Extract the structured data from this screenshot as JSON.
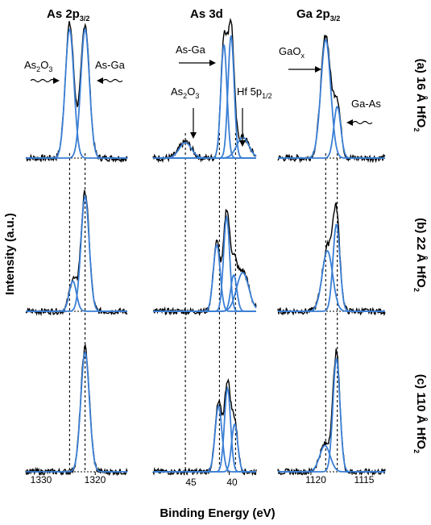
{
  "ylabel": "Intensity (a.u.)",
  "xlabel": "Binding Energy (eV)",
  "colors": {
    "data": "#000000",
    "fit": "#3a7fd5"
  },
  "columns": [
    {
      "id": "as2p",
      "title_main": "As 2p",
      "title_sub": "3/2",
      "xlim": [
        1333,
        1314
      ],
      "ticks": [
        {
          "value": 1330,
          "label": "1330"
        },
        {
          "value": 1320,
          "label": "1320"
        }
      ],
      "markers": [
        1324.8,
        1321.9
      ]
    },
    {
      "id": "as3d",
      "title_main": "As 3d",
      "title_sub": "",
      "xlim": [
        48.5,
        37
      ],
      "ticks": [
        {
          "value": 45,
          "label": "45"
        },
        {
          "value": 40,
          "label": "40"
        }
      ],
      "markers": [
        44.9,
        41.1,
        39.3
      ]
    },
    {
      "id": "ga2p",
      "title_main": "Ga 2p",
      "title_sub": "3/2",
      "xlim": [
        1124,
        1111
      ],
      "ticks": [
        {
          "value": 1120,
          "label": "1120"
        },
        {
          "value": 1115,
          "label": "1115"
        }
      ],
      "markers": [
        1118.2,
        1116.8
      ]
    }
  ],
  "rows": [
    {
      "label_prefix": "(a) 16 Å HfO",
      "label_sub": "2"
    },
    {
      "label_prefix": "(b) 22 Å HfO",
      "label_sub": "2"
    },
    {
      "label_prefix": "(c) 110 Å HfO",
      "label_sub": "2"
    }
  ],
  "annotations": {
    "as2p": [
      {
        "text": "As",
        "sub": "2",
        "text2": "O",
        "sub2": "3"
      },
      {
        "text": "As-Ga"
      }
    ],
    "as3d": [
      {
        "text": "As-Ga"
      },
      {
        "text": "As",
        "sub": "2",
        "text2": "O",
        "sub2": "3"
      },
      {
        "text": "Hf 5p",
        "sub": "1/2"
      }
    ],
    "ga2p": [
      {
        "text": "GaO",
        "sub": "x"
      },
      {
        "text": "Ga-As"
      }
    ]
  },
  "chart_data": {
    "type": "line",
    "title": "",
    "xlabel": "Binding Energy (eV)",
    "ylabel": "Intensity (a.u.)",
    "grid": false,
    "panels": [
      {
        "row": "a",
        "column": "as2p",
        "components": [
          {
            "center": 1324.8,
            "height": 1.0,
            "fwhm": 1.9
          },
          {
            "center": 1321.9,
            "height": 1.0,
            "fwhm": 1.9
          }
        ]
      },
      {
        "row": "a",
        "column": "as3d",
        "components": [
          {
            "center": 44.9,
            "height": 0.12,
            "fwhm": 1.6
          },
          {
            "center": 40.6,
            "height": 0.88,
            "fwhm": 0.8
          },
          {
            "center": 39.8,
            "height": 0.95,
            "fwhm": 0.8
          },
          {
            "center": 38.5,
            "height": 0.16,
            "fwhm": 1.6
          }
        ]
      },
      {
        "row": "a",
        "column": "ga2p",
        "components": [
          {
            "center": 1118.2,
            "height": 0.92,
            "fwhm": 1.4
          },
          {
            "center": 1116.8,
            "height": 0.4,
            "fwhm": 1.0
          }
        ]
      },
      {
        "row": "b",
        "column": "as2p",
        "components": [
          {
            "center": 1324.2,
            "height": 0.25,
            "fwhm": 1.6
          },
          {
            "center": 1321.9,
            "height": 0.95,
            "fwhm": 1.8
          }
        ]
      },
      {
        "row": "b",
        "column": "as3d",
        "components": [
          {
            "center": 41.4,
            "height": 0.55,
            "fwhm": 0.9
          },
          {
            "center": 40.3,
            "height": 0.78,
            "fwhm": 0.8
          },
          {
            "center": 39.5,
            "height": 0.3,
            "fwhm": 0.8
          },
          {
            "center": 38.5,
            "height": 0.32,
            "fwhm": 1.6
          }
        ]
      },
      {
        "row": "b",
        "column": "ga2p",
        "components": [
          {
            "center": 1118.0,
            "height": 0.5,
            "fwhm": 1.5
          },
          {
            "center": 1116.9,
            "height": 0.72,
            "fwhm": 1.0
          }
        ]
      },
      {
        "row": "c",
        "column": "as2p",
        "components": [
          {
            "center": 1321.9,
            "height": 1.0,
            "fwhm": 1.9
          }
        ]
      },
      {
        "row": "c",
        "column": "as3d",
        "components": [
          {
            "center": 41.2,
            "height": 0.55,
            "fwhm": 0.9
          },
          {
            "center": 40.2,
            "height": 0.7,
            "fwhm": 0.8
          },
          {
            "center": 39.4,
            "height": 0.4,
            "fwhm": 0.8
          }
        ]
      },
      {
        "row": "c",
        "column": "ga2p",
        "components": [
          {
            "center": 1118.3,
            "height": 0.22,
            "fwhm": 1.5
          },
          {
            "center": 1116.9,
            "height": 0.95,
            "fwhm": 1.0
          }
        ]
      }
    ]
  }
}
